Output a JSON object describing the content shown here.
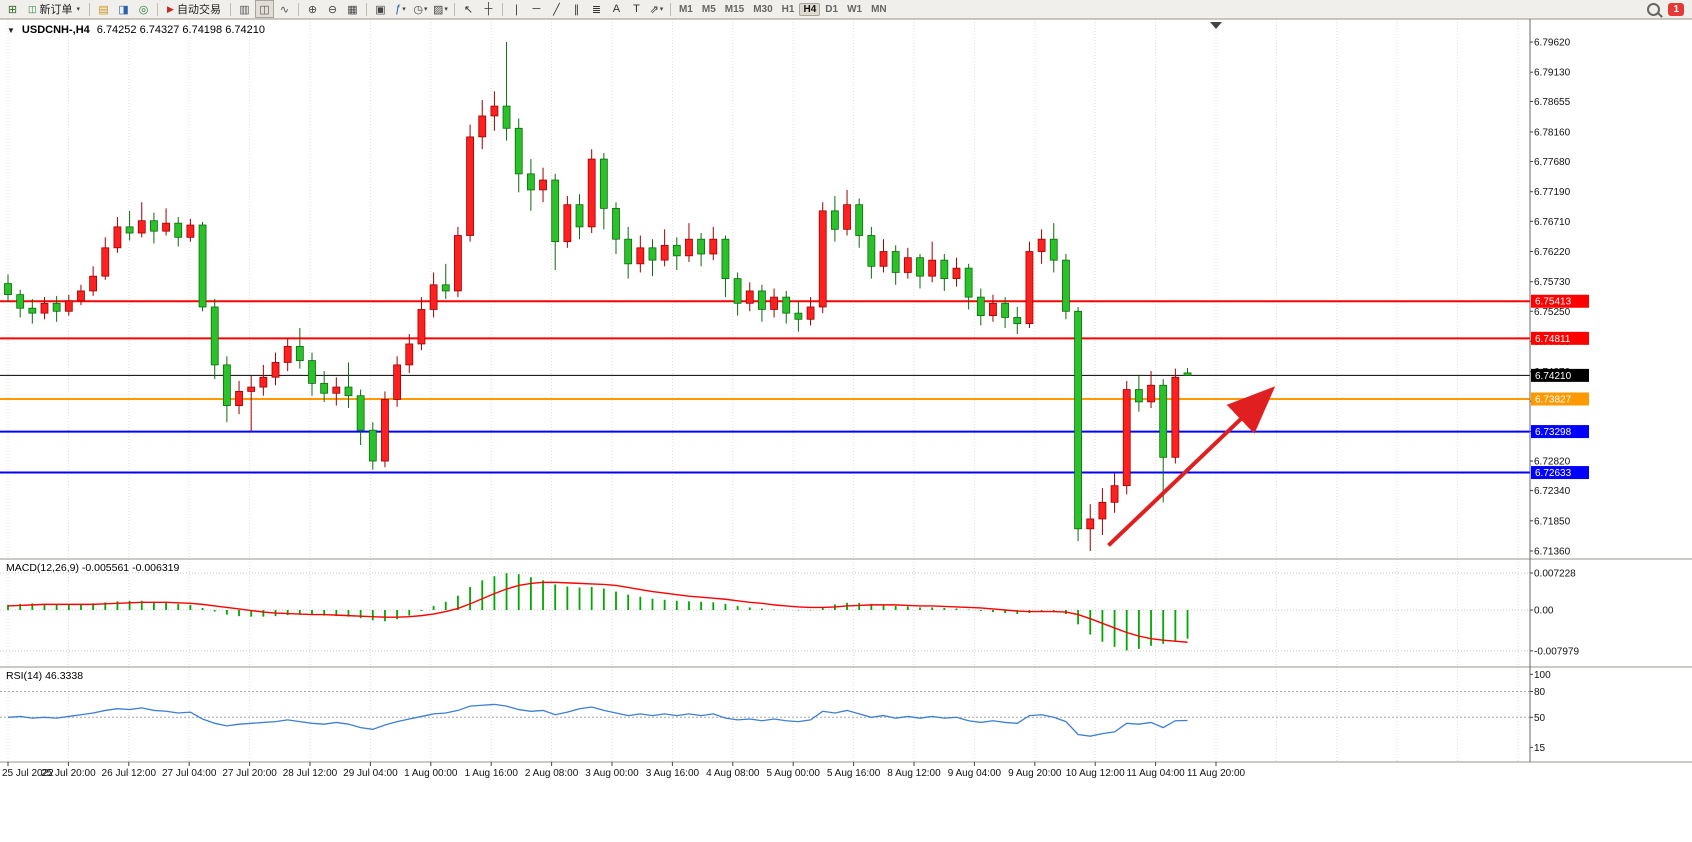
{
  "toolbar": {
    "notification_badge": "1",
    "items": [
      {
        "type": "icon",
        "name": "new-chart-icon",
        "glyph": "⊞",
        "color": "#33691e"
      },
      {
        "type": "button",
        "name": "new-order-button",
        "label": "新订单",
        "icon_glyph": "◫",
        "icon_color": "#2e7d32",
        "caret": "▾"
      },
      {
        "type": "sep"
      },
      {
        "type": "icon",
        "name": "market-watch-icon",
        "glyph": "▤",
        "color": "#c8951a"
      },
      {
        "type": "icon",
        "name": "data-window-icon",
        "glyph": "◨",
        "color": "#2962aa"
      },
      {
        "type": "icon",
        "name": "navigator-icon",
        "glyph": "◎",
        "color": "#2e7d32"
      },
      {
        "type": "sep"
      },
      {
        "type": "button",
        "name": "autotrading-button",
        "label": "自动交易",
        "icon_glyph": "▶",
        "icon_color": "#c62828"
      },
      {
        "type": "sep"
      },
      {
        "type": "icon",
        "name": "bar-chart-icon",
        "glyph": "▥",
        "color": "#555555"
      },
      {
        "type": "icon",
        "name": "candlestick-chart-icon",
        "glyph": "◫",
        "color": "#555555",
        "active": true
      },
      {
        "type": "icon",
        "name": "line-chart-icon",
        "glyph": "∿",
        "color": "#555555"
      },
      {
        "type": "sep"
      },
      {
        "type": "icon",
        "name": "zoom-in-icon",
        "glyph": "⊕",
        "color": "#444444"
      },
      {
        "type": "icon",
        "name": "zoom-out-icon",
        "glyph": "⊖",
        "color": "#444444"
      },
      {
        "type": "icon",
        "name": "grid-icon",
        "glyph": "▦",
        "color": "#444444"
      },
      {
        "type": "sep"
      },
      {
        "type": "icon",
        "name": "tile-windows-icon",
        "glyph": "▣",
        "color": "#444444"
      },
      {
        "type": "icon",
        "name": "indicators-icon",
        "glyph": "ƒ",
        "color": "#2962aa",
        "caret": "▾"
      },
      {
        "type": "icon",
        "name": "period-icon",
        "glyph": "◷",
        "color": "#444444",
        "caret": "▾"
      },
      {
        "type": "icon",
        "name": "templates-icon",
        "glyph": "▨",
        "color": "#444444",
        "caret": "▾"
      },
      {
        "type": "sep"
      },
      {
        "type": "icon",
        "name": "cursor-icon",
        "glyph": "↖",
        "color": "#333333"
      },
      {
        "type": "icon",
        "name": "crosshair-icon",
        "glyph": "┼",
        "color": "#333333"
      },
      {
        "type": "sep"
      },
      {
        "type": "icon",
        "name": "vertical-line-icon",
        "glyph": "∣",
        "color": "#333333"
      },
      {
        "type": "icon",
        "name": "horizontal-line-icon",
        "glyph": "─",
        "color": "#333333"
      },
      {
        "type": "icon",
        "name": "trendline-icon",
        "glyph": "╱",
        "color": "#333333"
      },
      {
        "type": "icon",
        "name": "channel-icon",
        "glyph": "∥",
        "color": "#333333"
      },
      {
        "type": "icon",
        "name": "fibonacci-icon",
        "glyph": "≣",
        "color": "#333333"
      },
      {
        "type": "icon",
        "name": "text-icon",
        "glyph": "A",
        "color": "#333333"
      },
      {
        "type": "icon",
        "name": "label-icon",
        "glyph": "T",
        "color": "#333333"
      },
      {
        "type": "icon",
        "name": "arrows-icon",
        "glyph": "⇗",
        "color": "#333333",
        "caret": "▾"
      },
      {
        "type": "sep"
      },
      {
        "type": "tf",
        "name": "timeframe-m1",
        "label": "M1"
      },
      {
        "type": "tf",
        "name": "timeframe-m5",
        "label": "M5"
      },
      {
        "type": "tf",
        "name": "timeframe-m15",
        "label": "M15"
      },
      {
        "type": "tf",
        "name": "timeframe-m30",
        "label": "M30"
      },
      {
        "type": "tf",
        "name": "timeframe-h1",
        "label": "H1"
      },
      {
        "type": "tf",
        "name": "timeframe-h4",
        "label": "H4",
        "active": true
      },
      {
        "type": "tf",
        "name": "timeframe-d1",
        "label": "D1"
      },
      {
        "type": "tf",
        "name": "timeframe-w1",
        "label": "W1"
      },
      {
        "type": "tf",
        "name": "timeframe-mn",
        "label": "MN"
      }
    ]
  },
  "chart": {
    "one_click_glyph": "▼",
    "symbol_period": "USDCNH-,H4",
    "ohlc_text": "6.74252 6.74327 6.74198 6.74210"
  },
  "indicators": {
    "macd_label": "MACD(12,26,9) -0.005561 -0.006319",
    "rsi_label": "RSI(14) 46.3338"
  },
  "chart_data": {
    "type": "candlestick",
    "symbol": "USDCNH-",
    "period": "H4",
    "up_color": "#ff2020",
    "up_border": "#9e0000",
    "down_color": "#2bc12b",
    "down_border": "#0b6b0b",
    "price_top": 6.7962,
    "price_bottom": 6.7136,
    "price_axis": [
      "6.79620",
      "6.79130",
      "6.78655",
      "6.78160",
      "6.77680",
      "6.77190",
      "6.76710",
      "6.76220",
      "6.75730",
      "6.75250",
      "6.74760",
      "6.74270",
      "6.73790",
      "6.73300",
      "6.72820",
      "6.72340",
      "6.71850",
      "6.71360"
    ],
    "hlines": [
      {
        "price": 6.75413,
        "label": "6.75413",
        "color": "#ff0000",
        "width": 2
      },
      {
        "price": 6.74811,
        "label": "6.74811",
        "color": "#ff0000",
        "width": 2
      },
      {
        "price": 6.7421,
        "label": "6.74210",
        "color": "#000000",
        "width": 1
      },
      {
        "price": 6.73827,
        "label": "6.73827",
        "color": "#ff9900",
        "width": 2
      },
      {
        "price": 6.73298,
        "label": "6.73298",
        "color": "#0000ff",
        "width": 2
      },
      {
        "price": 6.72633,
        "label": "6.72633",
        "color": "#0000ff",
        "width": 2
      }
    ],
    "time_labels": [
      "25 Jul 2022",
      "25 Jul 20:00",
      "26 Jul 12:00",
      "27 Jul 04:00",
      "27 Jul 20:00",
      "28 Jul 12:00",
      "29 Jul 04:00",
      "1 Aug 00:00",
      "1 Aug 16:00",
      "2 Aug 08:00",
      "3 Aug 00:00",
      "3 Aug 16:00",
      "4 Aug 08:00",
      "5 Aug 00:00",
      "5 Aug 16:00",
      "8 Aug 12:00",
      "9 Aug 04:00",
      "9 Aug 20:00",
      "10 Aug 12:00",
      "11 Aug 04:00",
      "11 Aug 20:00"
    ],
    "candles": [
      [
        6.757,
        6.7585,
        6.754,
        6.7552
      ],
      [
        6.7552,
        6.756,
        6.7515,
        6.753
      ],
      [
        6.753,
        6.7545,
        6.7505,
        6.7522
      ],
      [
        6.7522,
        6.7548,
        6.7512,
        6.7538
      ],
      [
        6.7538,
        6.755,
        6.7508,
        6.7525
      ],
      [
        6.7525,
        6.7552,
        6.7518,
        6.7542
      ],
      [
        6.7542,
        6.7568,
        6.7535,
        6.7558
      ],
      [
        6.7558,
        6.7598,
        6.755,
        6.7582
      ],
      [
        6.7582,
        6.7645,
        6.7576,
        6.7628
      ],
      [
        6.7628,
        6.7678,
        6.762,
        6.7662
      ],
      [
        6.7662,
        6.7688,
        6.764,
        6.7652
      ],
      [
        6.7652,
        6.7702,
        6.7645,
        6.7672
      ],
      [
        6.7672,
        6.7685,
        6.7635,
        6.7655
      ],
      [
        6.7655,
        6.7692,
        6.7648,
        6.7668
      ],
      [
        6.7668,
        6.7678,
        6.763,
        6.7645
      ],
      [
        6.7645,
        6.7675,
        6.7638,
        6.7665
      ],
      [
        6.7665,
        6.767,
        6.7525,
        6.7532
      ],
      [
        6.7532,
        6.7545,
        6.7415,
        6.7438
      ],
      [
        6.7438,
        6.7452,
        6.7345,
        6.7372
      ],
      [
        6.7372,
        6.7412,
        6.7358,
        6.7395
      ],
      [
        6.7395,
        6.742,
        6.733,
        6.7402
      ],
      [
        6.7402,
        6.7438,
        6.7388,
        6.7418
      ],
      [
        6.7418,
        6.7458,
        6.7405,
        6.7442
      ],
      [
        6.7442,
        6.7482,
        6.7428,
        6.7468
      ],
      [
        6.7468,
        6.7498,
        6.7432,
        6.7445
      ],
      [
        6.7445,
        6.7458,
        6.7388,
        6.7408
      ],
      [
        6.7408,
        6.7428,
        6.7378,
        6.7392
      ],
      [
        6.7392,
        6.7418,
        6.7372,
        6.7402
      ],
      [
        6.7402,
        6.7442,
        6.7368,
        6.7388
      ],
      [
        6.7388,
        6.7398,
        6.7308,
        6.7332
      ],
      [
        6.7332,
        6.7345,
        6.7268,
        6.7282
      ],
      [
        6.7282,
        6.7395,
        6.7272,
        6.7382
      ],
      [
        6.7382,
        6.7452,
        6.737,
        6.7438
      ],
      [
        6.7438,
        6.7488,
        6.7425,
        6.7472
      ],
      [
        6.7472,
        6.7548,
        6.7462,
        6.7528
      ],
      [
        6.7528,
        6.7588,
        6.7515,
        6.7568
      ],
      [
        6.7568,
        6.7602,
        6.7545,
        6.7558
      ],
      [
        6.7558,
        6.7662,
        6.7548,
        6.7648
      ],
      [
        6.7648,
        6.7828,
        6.7638,
        6.7808
      ],
      [
        6.7808,
        6.7868,
        6.7788,
        6.7842
      ],
      [
        6.7842,
        6.7882,
        6.7818,
        6.7858
      ],
      [
        6.7858,
        6.7962,
        6.7802,
        6.7822
      ],
      [
        6.7822,
        6.7838,
        6.7718,
        6.7748
      ],
      [
        6.7748,
        6.7772,
        6.7688,
        6.7722
      ],
      [
        6.7722,
        6.7758,
        6.7702,
        6.7738
      ],
      [
        6.7738,
        6.7748,
        6.7592,
        6.7638
      ],
      [
        6.7638,
        6.7712,
        6.7628,
        6.7698
      ],
      [
        6.7698,
        6.7715,
        6.7642,
        6.7662
      ],
      [
        6.7662,
        6.7788,
        6.7652,
        6.7772
      ],
      [
        6.7772,
        6.7782,
        6.7658,
        6.7692
      ],
      [
        6.7692,
        6.7702,
        6.7618,
        6.7642
      ],
      [
        6.7642,
        6.7662,
        6.7578,
        6.7602
      ],
      [
        6.7602,
        6.7648,
        6.7588,
        6.7628
      ],
      [
        6.7628,
        6.7642,
        6.7582,
        6.7608
      ],
      [
        6.7608,
        6.7658,
        6.7598,
        6.7632
      ],
      [
        6.7632,
        6.7645,
        6.7592,
        6.7615
      ],
      [
        6.7615,
        6.7668,
        6.7605,
        6.7642
      ],
      [
        6.7642,
        6.7652,
        6.7598,
        6.7618
      ],
      [
        6.7618,
        6.7662,
        6.7608,
        6.7642
      ],
      [
        6.7642,
        6.7648,
        6.7548,
        6.7578
      ],
      [
        6.7578,
        6.7588,
        6.7518,
        6.7538
      ],
      [
        6.7538,
        6.7572,
        6.7525,
        6.7558
      ],
      [
        6.7558,
        6.7568,
        6.7508,
        6.7528
      ],
      [
        6.7528,
        6.7562,
        6.7515,
        6.7548
      ],
      [
        6.7548,
        6.7558,
        6.7505,
        6.7522
      ],
      [
        6.7522,
        6.7542,
        6.7492,
        6.7512
      ],
      [
        6.7512,
        6.7548,
        6.7502,
        6.7532
      ],
      [
        6.7532,
        6.7702,
        6.7522,
        6.7688
      ],
      [
        6.7688,
        6.7712,
        6.7638,
        6.7658
      ],
      [
        6.7658,
        6.7722,
        6.7648,
        6.7698
      ],
      [
        6.7698,
        6.7708,
        6.7628,
        6.7648
      ],
      [
        6.7648,
        6.7662,
        6.7578,
        6.7598
      ],
      [
        6.7598,
        6.7642,
        6.7588,
        6.7622
      ],
      [
        6.7622,
        6.7632,
        6.7568,
        6.7588
      ],
      [
        6.7588,
        6.7628,
        6.7578,
        6.7612
      ],
      [
        6.7612,
        6.7618,
        6.7562,
        6.7582
      ],
      [
        6.7582,
        6.7638,
        6.7572,
        6.7608
      ],
      [
        6.7608,
        6.7618,
        6.7558,
        6.7578
      ],
      [
        6.7578,
        6.7612,
        6.7565,
        6.7595
      ],
      [
        6.7595,
        6.7602,
        6.7528,
        6.7548
      ],
      [
        6.7548,
        6.7562,
        6.7502,
        6.7518
      ],
      [
        6.7518,
        6.7552,
        6.7508,
        6.7538
      ],
      [
        6.7538,
        6.7548,
        6.7498,
        6.7515
      ],
      [
        6.7515,
        6.7532,
        6.7488,
        6.7505
      ],
      [
        6.7505,
        6.7638,
        6.7498,
        6.7622
      ],
      [
        6.7622,
        6.7658,
        6.7602,
        6.7642
      ],
      [
        6.7642,
        6.7668,
        6.7588,
        6.7608
      ],
      [
        6.7608,
        6.7618,
        6.7512,
        6.7525
      ],
      [
        6.7525,
        6.7532,
        6.7152,
        6.7172
      ],
      [
        6.7172,
        6.7212,
        6.7136,
        6.7188
      ],
      [
        6.7188,
        6.7238,
        6.7162,
        6.7215
      ],
      [
        6.7215,
        6.7262,
        6.7198,
        6.7242
      ],
      [
        6.7242,
        6.7412,
        6.7228,
        6.7398
      ],
      [
        6.7398,
        6.7422,
        6.7362,
        6.7378
      ],
      [
        6.7378,
        6.7428,
        6.7368,
        6.7405
      ],
      [
        6.7405,
        6.7415,
        6.7215,
        6.7288
      ],
      [
        6.7288,
        6.7432,
        6.7278,
        6.7418
      ],
      [
        6.7425,
        6.7433,
        6.742,
        6.7421
      ]
    ],
    "macd": {
      "histogram_color": "#00a800",
      "signal_color": "#ff0000",
      "axis_labels": [
        {
          "value": 0.007228,
          "text": "0.007228"
        },
        {
          "value": 0,
          "text": "0.00"
        },
        {
          "value": -0.007979,
          "text": "-0.007979"
        }
      ],
      "histogram": [
        0.001,
        0.0012,
        0.0013,
        0.0012,
        0.0011,
        0.001,
        0.0011,
        0.0013,
        0.0015,
        0.0017,
        0.0018,
        0.0018,
        0.0016,
        0.0014,
        0.0012,
        0.001,
        0.0004,
        -0.0003,
        -0.0009,
        -0.0012,
        -0.0013,
        -0.0013,
        -0.0012,
        -0.001,
        -0.0009,
        -0.001,
        -0.0011,
        -0.0012,
        -0.0013,
        -0.0016,
        -0.002,
        -0.0022,
        -0.0018,
        -0.0011,
        -0.0002,
        0.0008,
        0.0016,
        0.0028,
        0.0045,
        0.0058,
        0.0066,
        0.0072,
        0.007,
        0.0064,
        0.0058,
        0.005,
        0.0046,
        0.0044,
        0.0045,
        0.0042,
        0.0036,
        0.003,
        0.0026,
        0.0022,
        0.002,
        0.0018,
        0.0017,
        0.0016,
        0.0015,
        0.0012,
        0.0008,
        0.0005,
        0.0003,
        0.0001,
        0.0,
        -0.0001,
        -0.0001,
        0.0006,
        0.0011,
        0.0014,
        0.0014,
        0.0012,
        0.001,
        0.0008,
        0.0007,
        0.0005,
        0.0005,
        0.0004,
        0.0003,
        0.0001,
        -0.0002,
        -0.0004,
        -0.0006,
        -0.0008,
        -0.0006,
        -0.0004,
        -0.0004,
        -0.0008,
        -0.0028,
        -0.0048,
        -0.0062,
        -0.0072,
        -0.0079,
        -0.0076,
        -0.007,
        -0.0066,
        -0.006,
        -0.0056
      ],
      "signal": [
        0.0008,
        0.0009,
        0.001,
        0.0011,
        0.0011,
        0.0011,
        0.0011,
        0.0011,
        0.0012,
        0.0013,
        0.0014,
        0.0015,
        0.0015,
        0.0015,
        0.0014,
        0.0013,
        0.0011,
        0.0008,
        0.0005,
        0.0002,
        -0.0001,
        -0.0004,
        -0.0006,
        -0.0007,
        -0.0008,
        -0.0009,
        -0.0009,
        -0.001,
        -0.0011,
        -0.0012,
        -0.0013,
        -0.0014,
        -0.0014,
        -0.0013,
        -0.0011,
        -0.0008,
        -0.0003,
        0.0003,
        0.0012,
        0.0022,
        0.0032,
        0.0041,
        0.0048,
        0.0052,
        0.0054,
        0.0054,
        0.0053,
        0.0052,
        0.0051,
        0.005,
        0.0048,
        0.0044,
        0.004,
        0.0036,
        0.0033,
        0.003,
        0.0027,
        0.0025,
        0.0023,
        0.0021,
        0.0018,
        0.0015,
        0.0013,
        0.001,
        0.0008,
        0.0006,
        0.0005,
        0.0005,
        0.0006,
        0.0008,
        0.0009,
        0.001,
        0.001,
        0.001,
        0.0009,
        0.0008,
        0.0008,
        0.0007,
        0.0006,
        0.0005,
        0.0004,
        0.0002,
        0.0,
        -0.0002,
        -0.0003,
        -0.0003,
        -0.0003,
        -0.0004,
        -0.0009,
        -0.0017,
        -0.0026,
        -0.0035,
        -0.0044,
        -0.0051,
        -0.0056,
        -0.0059,
        -0.0061,
        -0.0063
      ]
    },
    "rsi": {
      "color": "#3e7fd0",
      "levels": [
        80,
        50
      ],
      "axis_labels": [
        {
          "value": 100,
          "text": "100"
        },
        {
          "value": 80,
          "text": "80"
        },
        {
          "value": 50,
          "text": "50"
        },
        {
          "value": 15,
          "text": "15"
        }
      ],
      "values": [
        50,
        51,
        49,
        50,
        49,
        51,
        53,
        55,
        58,
        60,
        59,
        61,
        58,
        57,
        55,
        56,
        48,
        43,
        40,
        42,
        43,
        44,
        45,
        47,
        45,
        43,
        42,
        44,
        42,
        38,
        36,
        41,
        45,
        48,
        51,
        54,
        55,
        58,
        63,
        64,
        65,
        63,
        59,
        57,
        58,
        53,
        56,
        60,
        62,
        58,
        55,
        52,
        54,
        52,
        54,
        52,
        54,
        52,
        54,
        49,
        47,
        48,
        46,
        48,
        46,
        45,
        47,
        57,
        55,
        58,
        54,
        50,
        52,
        49,
        51,
        49,
        51,
        49,
        50,
        46,
        44,
        46,
        44,
        43,
        52,
        53,
        50,
        45,
        30,
        28,
        31,
        33,
        43,
        42,
        44,
        38,
        46,
        46.3
      ]
    },
    "arrow": {
      "from_bar": 90.5,
      "from_price": 6.7145,
      "to_bar": 103.5,
      "to_price": 6.739,
      "color": "#e02020"
    }
  }
}
